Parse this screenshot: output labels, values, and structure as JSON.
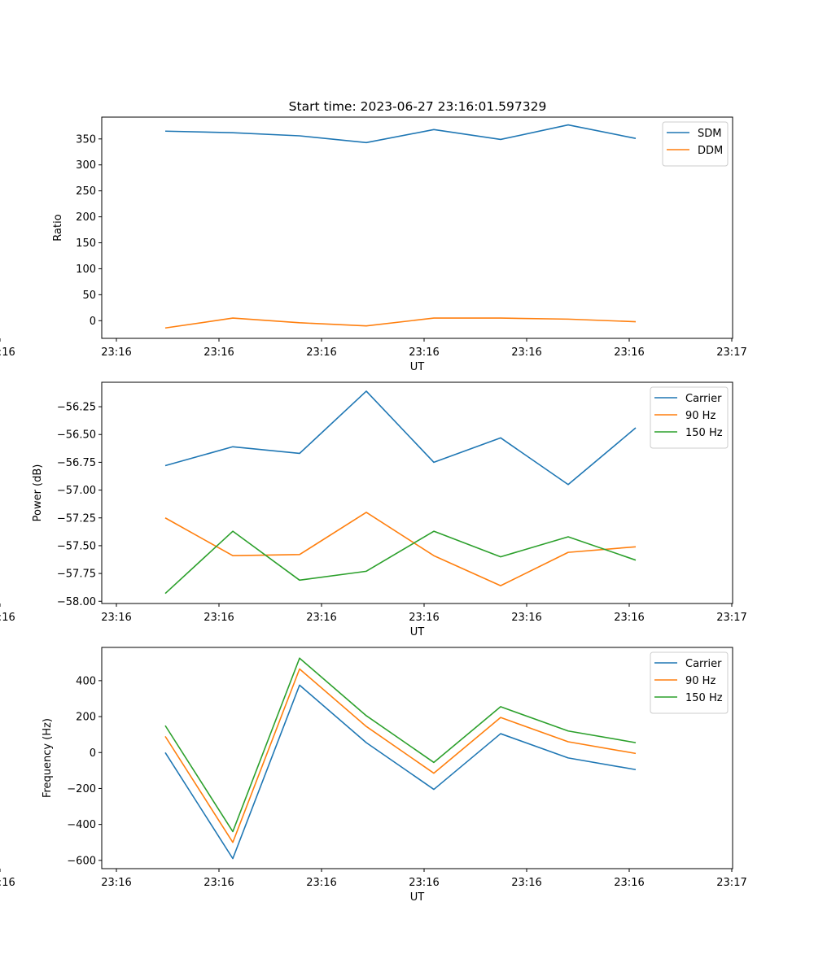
{
  "title": "Start time: 2023-06-27 23:16:01.597329",
  "chart_data": [
    {
      "type": "line",
      "xlabel": "UT",
      "ylabel": "Ratio",
      "x_ticks": [
        "23:16",
        "23:16",
        "23:16",
        "23:16",
        "23:16",
        "23:16",
        "23:16"
      ],
      "x_end_tick": "23:17",
      "y_ticks": [
        0,
        50,
        100,
        150,
        200,
        250,
        300,
        350
      ],
      "ylim": [
        -34,
        392
      ],
      "legend": "top-right",
      "series": [
        {
          "name": "SDM",
          "color": "#1f77b4",
          "values": [
            365,
            362,
            356,
            343,
            368,
            349,
            377,
            351
          ]
        },
        {
          "name": "DDM",
          "color": "#ff7f0e",
          "values": [
            -14,
            5,
            -4,
            -10,
            5,
            5,
            3,
            -2
          ]
        }
      ]
    },
    {
      "type": "line",
      "xlabel": "UT",
      "ylabel": "Power (dB)",
      "x_ticks": [
        "23:16",
        "23:16",
        "23:16",
        "23:16",
        "23:16",
        "23:16",
        "23:16"
      ],
      "x_end_tick": "23:17",
      "y_ticks": [
        -58.0,
        -57.75,
        -57.5,
        -57.25,
        -57.0,
        -56.75,
        -56.5,
        -56.25
      ],
      "y_tick_labels": [
        "−58.00",
        "−57.75",
        "−57.50",
        "−57.25",
        "−57.00",
        "−56.75",
        "−56.50",
        "−56.25"
      ],
      "ylim": [
        -58.02,
        -56.03
      ],
      "legend": "top-right",
      "series": [
        {
          "name": "Carrier",
          "color": "#1f77b4",
          "values": [
            -56.78,
            -56.61,
            -56.67,
            -56.11,
            -56.75,
            -56.53,
            -56.95,
            -56.44
          ]
        },
        {
          "name": "90 Hz",
          "color": "#ff7f0e",
          "values": [
            -57.25,
            -57.59,
            -57.58,
            -57.2,
            -57.59,
            -57.86,
            -57.56,
            -57.51
          ]
        },
        {
          "name": "150 Hz",
          "color": "#2ca02c",
          "values": [
            -57.93,
            -57.37,
            -57.81,
            -57.73,
            -57.37,
            -57.6,
            -57.42,
            -57.63
          ]
        }
      ]
    },
    {
      "type": "line",
      "xlabel": "UT",
      "ylabel": "Frequency (Hz)",
      "x_ticks": [
        "23:16",
        "23:16",
        "23:16",
        "23:16",
        "23:16",
        "23:16",
        "23:16"
      ],
      "x_end_tick": "23:17",
      "y_ticks": [
        -600,
        -400,
        -200,
        0,
        200,
        400
      ],
      "y_tick_labels": [
        "−600",
        "−400",
        "−200",
        "0",
        "200",
        "400"
      ],
      "ylim": [
        -646,
        585
      ],
      "legend": "top-right",
      "series": [
        {
          "name": "Carrier",
          "color": "#1f77b4",
          "values": [
            0,
            -590,
            375,
            55,
            -205,
            105,
            -30,
            -95
          ]
        },
        {
          "name": "90 Hz",
          "color": "#ff7f0e",
          "values": [
            90,
            -500,
            465,
            145,
            -115,
            195,
            60,
            -5
          ]
        },
        {
          "name": "150 Hz",
          "color": "#2ca02c",
          "values": [
            150,
            -440,
            525,
            205,
            -55,
            255,
            120,
            55
          ]
        }
      ]
    }
  ]
}
